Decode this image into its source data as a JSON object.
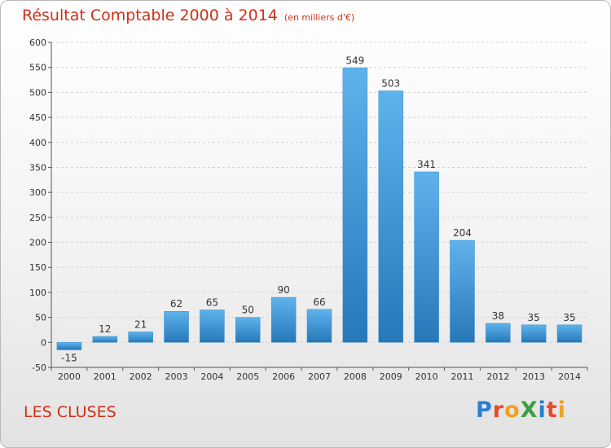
{
  "header": {
    "title": "Résultat Comptable 2000 à 2014",
    "unit": "(en milliers d'€)"
  },
  "footer": {
    "city": "LES CLUSES",
    "logo": "ProXiti"
  },
  "colors": {
    "title": "#d03018",
    "bar_top": "#5fb3ec",
    "bar_bottom": "#2678b8"
  },
  "chart_data": {
    "type": "bar",
    "title": "Résultat Comptable 2000 à 2014",
    "categories": [
      "2000",
      "2001",
      "2002",
      "2003",
      "2004",
      "2005",
      "2006",
      "2007",
      "2008",
      "2009",
      "2010",
      "2011",
      "2012",
      "2013",
      "2014"
    ],
    "values": [
      -15,
      12,
      21,
      62,
      65,
      50,
      90,
      66,
      549,
      503,
      341,
      204,
      38,
      35,
      35
    ],
    "ylim": [
      -50,
      600
    ],
    "yticks": [
      -50,
      0,
      50,
      100,
      150,
      200,
      250,
      300,
      350,
      400,
      450,
      500,
      550,
      600
    ],
    "grid": true
  }
}
